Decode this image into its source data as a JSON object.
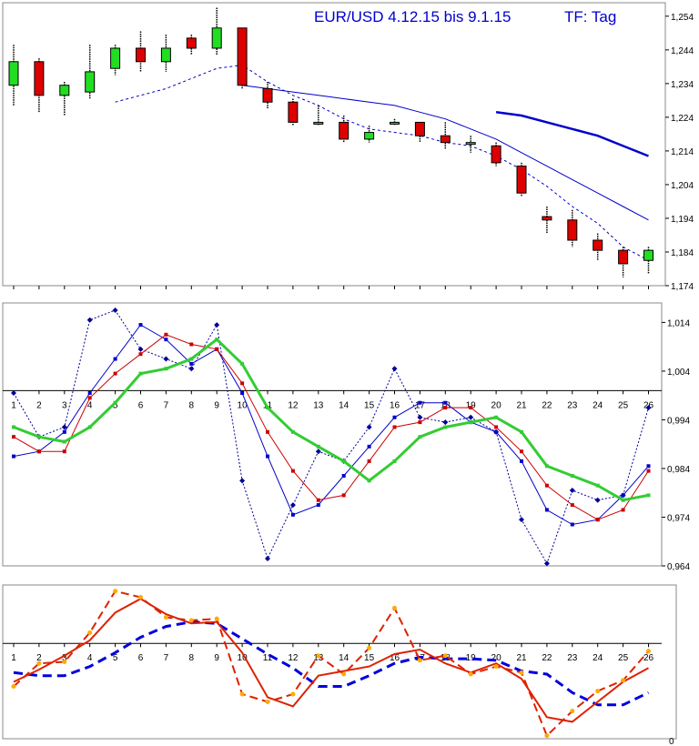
{
  "chart_data": [
    {
      "type": "candlestick",
      "title": "EUR/USD 4.12.15 bis 9.1.15",
      "timeframe": "TF: Tag",
      "ylim": [
        1.174,
        1.258
      ],
      "yticks": [
        "1,174",
        "1,184",
        "1,194",
        "1,204",
        "1,214",
        "1,224",
        "1,234",
        "1,244",
        "1,254"
      ],
      "candles": [
        {
          "x": 1,
          "open": 1.2335,
          "high": 1.2455,
          "low": 1.2275,
          "close": 1.2405
        },
        {
          "x": 2,
          "open": 1.2405,
          "high": 1.2415,
          "low": 1.2255,
          "close": 1.2305
        },
        {
          "x": 3,
          "open": 1.2305,
          "high": 1.2345,
          "low": 1.2245,
          "close": 1.2335
        },
        {
          "x": 4,
          "open": 1.2315,
          "high": 1.2455,
          "low": 1.2295,
          "close": 1.2375
        },
        {
          "x": 5,
          "open": 1.2385,
          "high": 1.2455,
          "low": 1.2365,
          "close": 1.2445
        },
        {
          "x": 6,
          "open": 1.2445,
          "high": 1.2495,
          "low": 1.2375,
          "close": 1.2405
        },
        {
          "x": 7,
          "open": 1.2405,
          "high": 1.2485,
          "low": 1.2375,
          "close": 1.2445
        },
        {
          "x": 8,
          "open": 1.2475,
          "high": 1.2485,
          "low": 1.2425,
          "close": 1.2445
        },
        {
          "x": 9,
          "open": 1.2445,
          "high": 1.2565,
          "low": 1.2425,
          "close": 1.2505
        },
        {
          "x": 10,
          "open": 1.2505,
          "high": 1.2505,
          "low": 1.2325,
          "close": 1.2335
        },
        {
          "x": 11,
          "open": 1.2325,
          "high": 1.2345,
          "low": 1.2265,
          "close": 1.2285
        },
        {
          "x": 12,
          "open": 1.2285,
          "high": 1.2295,
          "low": 1.2215,
          "close": 1.2225
        },
        {
          "x": 13,
          "open": 1.2225,
          "high": 1.2275,
          "low": 1.2215,
          "close": 1.2225
        },
        {
          "x": 14,
          "open": 1.2225,
          "high": 1.2245,
          "low": 1.2165,
          "close": 1.2175
        },
        {
          "x": 15,
          "open": 1.2175,
          "high": 1.2215,
          "low": 1.2165,
          "close": 1.2195
        },
        {
          "x": 16,
          "open": 1.2225,
          "high": 1.2235,
          "low": 1.2215,
          "close": 1.2225
        },
        {
          "x": 17,
          "open": 1.2225,
          "high": 1.2225,
          "low": 1.2165,
          "close": 1.2185
        },
        {
          "x": 18,
          "open": 1.2185,
          "high": 1.2225,
          "low": 1.2145,
          "close": 1.2165
        },
        {
          "x": 19,
          "open": 1.2165,
          "high": 1.2185,
          "low": 1.2135,
          "close": 1.2165
        },
        {
          "x": 20,
          "open": 1.2155,
          "high": 1.2165,
          "low": 1.2095,
          "close": 1.2105
        },
        {
          "x": 21,
          "open": 1.2095,
          "high": 1.2105,
          "low": 1.2005,
          "close": 1.2015
        },
        {
          "x": 22,
          "open": 1.1945,
          "high": 1.1975,
          "low": 1.1895,
          "close": 1.1935
        },
        {
          "x": 23,
          "open": 1.1935,
          "high": 1.1965,
          "low": 1.1855,
          "close": 1.1875
        },
        {
          "x": 24,
          "open": 1.1875,
          "high": 1.1895,
          "low": 1.1815,
          "close": 1.1845
        },
        {
          "x": 25,
          "open": 1.1845,
          "high": 1.1855,
          "low": 1.1765,
          "close": 1.1805
        },
        {
          "x": 26,
          "open": 1.1815,
          "high": 1.1855,
          "low": 1.1775,
          "close": 1.1845
        }
      ],
      "series": [
        {
          "color": "#0000cc",
          "style": "dashed",
          "width": 1,
          "x": [
            5,
            6,
            7,
            8,
            9,
            10,
            11,
            12,
            13,
            14,
            15,
            16,
            17,
            18,
            19,
            20,
            21,
            22,
            23,
            24,
            25,
            26
          ],
          "values": [
            1.2285,
            1.2305,
            1.2325,
            1.2355,
            1.2385,
            1.2395,
            1.2345,
            1.2305,
            1.2275,
            1.2235,
            1.2205,
            1.2195,
            1.2185,
            1.2165,
            1.2155,
            1.2125,
            1.2085,
            1.2035,
            1.1975,
            1.1925,
            1.1855,
            1.1815
          ]
        },
        {
          "color": "#0000cc",
          "style": "solid",
          "width": 1,
          "x": [
            10,
            11,
            12,
            13,
            14,
            15,
            16,
            17,
            18,
            19,
            20,
            21,
            22,
            23,
            24,
            25,
            26
          ],
          "values": [
            1.2335,
            1.2325,
            1.2315,
            1.2305,
            1.2295,
            1.2285,
            1.2275,
            1.2255,
            1.2235,
            1.2205,
            1.2175,
            1.2135,
            1.2095,
            1.2055,
            1.2015,
            1.1975,
            1.1935
          ]
        },
        {
          "color": "#0000cc",
          "style": "solid",
          "width": 2.5,
          "x": [
            20,
            21,
            22,
            23,
            24,
            25,
            26
          ],
          "values": [
            1.2255,
            1.2245,
            1.2225,
            1.2205,
            1.2185,
            1.2155,
            1.2125
          ]
        }
      ]
    },
    {
      "type": "line",
      "ylim": [
        0.964,
        1.018
      ],
      "yticks": [
        "0,964",
        "0,974",
        "0,984",
        "0,994",
        "1,004",
        "1,014"
      ],
      "baseline": 1.0,
      "categories": [
        "1",
        "2",
        "3",
        "4",
        "5",
        "6",
        "7",
        "8",
        "9",
        "10",
        "11",
        "12",
        "13",
        "14",
        "15",
        "16",
        "17",
        "18",
        "19",
        "20",
        "21",
        "22",
        "23",
        "24",
        "25",
        "26"
      ],
      "series": [
        {
          "color": "#000099",
          "style": "dotted",
          "marker": "diamond",
          "values": [
            0.9995,
            0.9905,
            0.9925,
            1.0145,
            1.0165,
            1.0085,
            1.0065,
            1.0045,
            1.0135,
            0.9815,
            0.9655,
            0.9765,
            0.9875,
            0.9855,
            0.9925,
            1.0045,
            0.9945,
            0.9935,
            0.9945,
            0.9915,
            0.9735,
            0.9645,
            0.9795,
            0.9775,
            0.9785,
            0.9965
          ]
        },
        {
          "color": "#0000cc",
          "style": "solid",
          "marker": "square",
          "values": [
            0.9865,
            0.9875,
            0.9915,
            0.9995,
            1.0065,
            1.0135,
            1.0105,
            1.0055,
            1.0085,
            0.9995,
            0.9865,
            0.9745,
            0.9765,
            0.9825,
            0.9885,
            0.9945,
            0.9975,
            0.9975,
            0.9935,
            0.9915,
            0.9855,
            0.9755,
            0.9725,
            0.9735,
            0.9785,
            0.9845
          ]
        },
        {
          "color": "#cc0000",
          "style": "solid",
          "marker": "square",
          "values": [
            0.9905,
            0.9875,
            0.9875,
            0.9985,
            1.0035,
            1.0075,
            1.0115,
            1.0095,
            1.0085,
            1.0015,
            0.9915,
            0.9835,
            0.9775,
            0.9785,
            0.9855,
            0.9925,
            0.9935,
            0.9965,
            0.9965,
            0.9925,
            0.9875,
            0.9805,
            0.9765,
            0.9735,
            0.9755,
            0.9835
          ]
        },
        {
          "color": "#33cc33",
          "style": "solid",
          "width": 3,
          "marker": "square",
          "values": [
            0.9925,
            0.9905,
            0.9895,
            0.9925,
            0.9975,
            1.0035,
            1.0045,
            1.0065,
            1.0105,
            1.0055,
            0.9965,
            0.9915,
            0.9885,
            0.9855,
            0.9815,
            0.9855,
            0.9905,
            0.9925,
            0.9935,
            0.9945,
            0.9915,
            0.9845,
            0.9825,
            0.9805,
            0.9775,
            0.9785
          ]
        }
      ]
    },
    {
      "type": "line",
      "yticks": [
        "0"
      ],
      "ylim": [
        0,
        10
      ],
      "baseline": 6.2,
      "categories": [
        "1",
        "2",
        "3",
        "4",
        "5",
        "6",
        "7",
        "8",
        "9",
        "10",
        "11",
        "12",
        "13",
        "14",
        "15",
        "16",
        "17",
        "18",
        "19",
        "20",
        "21",
        "22",
        "23",
        "24",
        "25",
        "26"
      ],
      "series": [
        {
          "color": "#0000dd",
          "style": "dashed",
          "width": 3,
          "values": [
            4.3,
            4.1,
            4.1,
            4.7,
            5.6,
            6.6,
            7.3,
            7.6,
            7.5,
            6.5,
            5.5,
            4.6,
            3.4,
            3.4,
            4.1,
            4.9,
            5.3,
            5.2,
            5.2,
            5.1,
            4.4,
            4.2,
            3.0,
            2.2,
            2.2,
            3.0
          ]
        },
        {
          "color": "#dd2200",
          "style": "solid",
          "width": 2,
          "values": [
            3.7,
            4.5,
            5.4,
            6.4,
            8.2,
            9.1,
            8.1,
            7.5,
            7.6,
            5.6,
            2.7,
            2.1,
            4.1,
            4.4,
            4.7,
            5.5,
            5.8,
            4.9,
            4.3,
            4.9,
            3.9,
            1.4,
            1.1,
            2.4,
            3.7,
            4.6
          ]
        },
        {
          "color": "#dd2200",
          "style": "dashed",
          "width": 2,
          "marker": "circle",
          "values": [
            3.4,
            4.9,
            5.0,
            6.9,
            9.6,
            9.2,
            7.9,
            7.7,
            7.8,
            2.9,
            2.4,
            2.9,
            5.4,
            4.2,
            5.9,
            8.5,
            5.1,
            5.4,
            4.2,
            4.7,
            4.3,
            0.2,
            1.8,
            3.1,
            3.8,
            5.7
          ]
        },
        {
          "color": "#ffaa00",
          "style": "none",
          "marker": "circle",
          "values": [
            3.4,
            4.9,
            5.0,
            6.9,
            9.6,
            9.2,
            7.9,
            7.7,
            7.8,
            2.9,
            2.4,
            2.9,
            5.4,
            4.2,
            5.9,
            8.5,
            5.1,
            5.4,
            4.2,
            4.7,
            4.3,
            0.2,
            1.8,
            3.1,
            3.8,
            5.7
          ]
        }
      ]
    }
  ]
}
